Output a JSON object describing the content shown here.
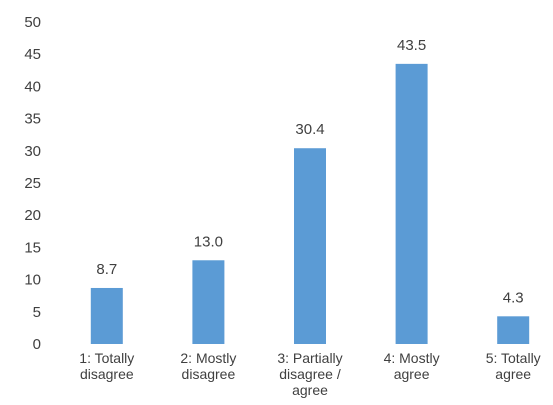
{
  "chart_data": {
    "type": "bar",
    "categories": [
      [
        "1: Totally",
        "disagree"
      ],
      [
        "2: Mostly",
        "disagree"
      ],
      [
        "3: Partially",
        "disagree /",
        "agree"
      ],
      [
        "4: Mostly",
        "agree"
      ],
      [
        "5: Totally",
        "agree"
      ]
    ],
    "values": [
      8.7,
      13.0,
      30.4,
      43.5,
      4.3
    ],
    "data_labels": [
      "8.7",
      "13.0",
      "30.4",
      "43.5",
      "4.3"
    ],
    "y_ticks": [
      "0",
      "5",
      "10",
      "15",
      "20",
      "25",
      "30",
      "35",
      "40",
      "45",
      "50"
    ],
    "ylim": [
      0,
      50
    ],
    "grid": false,
    "legend": "none",
    "bar_color": "#5b9bd5"
  }
}
